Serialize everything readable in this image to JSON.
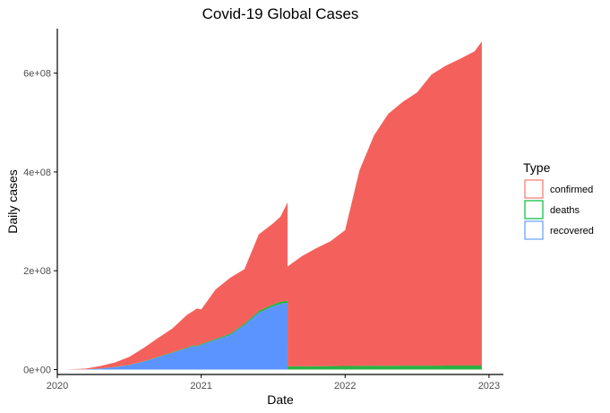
{
  "chart_data": {
    "type": "area",
    "stacked": true,
    "title": "Covid-19 Global Cases",
    "xlabel": "Date",
    "ylabel": "Daily cases",
    "xlim": [
      2020.0,
      2023.1
    ],
    "ylim": [
      -10000000,
      690000000
    ],
    "x_ticks": [
      {
        "value": 2020,
        "label": "2020"
      },
      {
        "value": 2021,
        "label": "2021"
      },
      {
        "value": 2022,
        "label": "2022"
      },
      {
        "value": 2023,
        "label": "2023"
      }
    ],
    "y_ticks": [
      {
        "value": 0,
        "label": "0e+00"
      },
      {
        "value": 200000000,
        "label": "2e+08"
      },
      {
        "value": 400000000,
        "label": "4e+08"
      },
      {
        "value": 600000000,
        "label": "6e+08"
      }
    ],
    "legend": {
      "title": "Type",
      "placement": "right",
      "entries": [
        "confirmed",
        "deaths",
        "recovered"
      ]
    },
    "grid": false,
    "x": [
      2020.06,
      2020.2,
      2020.3,
      2020.4,
      2020.5,
      2020.6,
      2020.7,
      2020.8,
      2020.9,
      2020.95,
      2020.97,
      2021.0,
      2021.1,
      2021.2,
      2021.3,
      2021.4,
      2021.5,
      2021.55,
      2021.6,
      2021.6001,
      2021.7,
      2021.8,
      2021.9,
      2022.0,
      2022.1,
      2022.2,
      2022.3,
      2022.4,
      2022.5,
      2022.6,
      2022.7,
      2022.8,
      2022.9,
      2022.95
    ],
    "series": [
      {
        "name": "recovered",
        "color": "#619CFF",
        "fill": "#5C94FF",
        "values": [
          0,
          400000,
          2000000,
          5000000,
          9000000,
          16000000,
          25000000,
          34000000,
          43000000,
          48000000,
          46000000,
          50000000,
          60000000,
          70000000,
          90000000,
          115000000,
          128000000,
          133000000,
          135000000,
          0,
          0,
          0,
          0,
          0,
          0,
          0,
          0,
          0,
          0,
          0,
          0,
          0,
          0,
          0
        ]
      },
      {
        "name": "deaths",
        "color": "#00BA38",
        "fill": "#2BB140",
        "values": [
          0,
          80000,
          200000,
          300000,
          500000,
          700000,
          900000,
          1100000,
          1400000,
          1600000,
          1600000,
          1800000,
          2100000,
          2600000,
          3000000,
          3500000,
          4000000,
          4200000,
          4300000,
          6500000,
          6600000,
          6800000,
          7000000,
          7200000,
          7500000,
          7600000,
          7700000,
          7800000,
          7900000,
          8000000,
          8100000,
          8100000,
          8200000,
          8200000
        ]
      },
      {
        "name": "confirmed",
        "color": "#F8766D",
        "fill": "#F4615C",
        "values": [
          0,
          1600000,
          5000000,
          9000000,
          16000000,
          27000000,
          38000000,
          48000000,
          66000000,
          70000000,
          76000000,
          70000000,
          100000000,
          113000000,
          110000000,
          155000000,
          164000000,
          172000000,
          199000000,
          202000000,
          223000000,
          239000000,
          253000000,
          275000000,
          396000000,
          466000000,
          510000000,
          534000000,
          553000000,
          589000000,
          607000000,
          621000000,
          636000000,
          656000000
        ]
      }
    ]
  }
}
